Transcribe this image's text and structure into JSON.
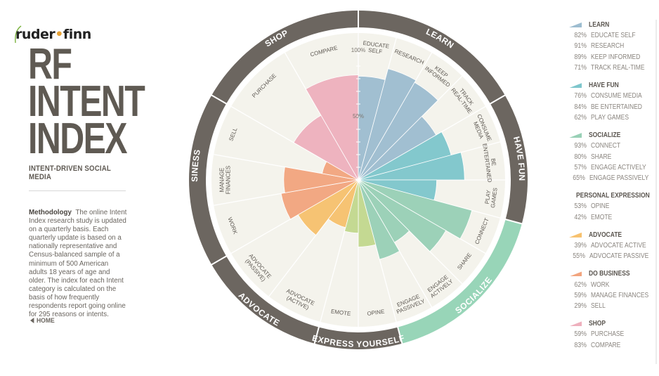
{
  "brand": {
    "name_left": "ruder",
    "name_dot": "•",
    "name_right": "finn"
  },
  "title_lines": [
    "RF",
    "INTENT",
    "INDEX"
  ],
  "subtitle": "INTENT-DRIVEN SOCIAL MEDIA",
  "methodology": {
    "heading": "Methodology",
    "text": "The online Intent Index research study is updated on a quarterly basis. Each quarterly update is based on a nationally representative and Census-balanced sample of a minimum of 500 American adults 18 years of age and older. The index for each Intent category is calculated on the basis of how frequently respondents report going online for 295 reasons or intents."
  },
  "home_label": "HOME",
  "colors": {
    "learn": "#9dbdd0",
    "have_fun": "#7ec6cc",
    "socialize": "#98d0b6",
    "personal_expression": "#c2d88e",
    "advocate": "#f7c16d",
    "do_business": "#f2a47e",
    "shop": "#eeb0bd",
    "ring": "#6c6660",
    "ring_highlight": "#98d5b8",
    "disk": "#f4f3ec"
  },
  "chart_data": {
    "type": "polar-bar",
    "axis_labels": {
      "full": "100%",
      "half": "50%"
    },
    "rlim": [
      0,
      100
    ],
    "categories": [
      {
        "name": "LEARN",
        "key": "learn",
        "start_deg": 0,
        "end_deg": 60,
        "ring_label": "LEARN",
        "highlight": false,
        "items": [
          {
            "label": "EDUCATE SELF",
            "value": 82,
            "lines": [
              "EDUCATE",
              "SELF"
            ]
          },
          {
            "label": "RESEARCH",
            "value": 91,
            "lines": [
              "RESEARCH"
            ]
          },
          {
            "label": "KEEP INFORMED",
            "value": 89,
            "lines": [
              "KEEP",
              "INFORMED"
            ]
          },
          {
            "label": "TRACK REAL-TIME",
            "value": 71,
            "lines": [
              "TRACK",
              "REAL-TIME"
            ]
          }
        ]
      },
      {
        "name": "HAVE FUN",
        "key": "have_fun",
        "start_deg": 60,
        "end_deg": 105,
        "ring_label": "HAVE FUN",
        "highlight": false,
        "items": [
          {
            "label": "CONSUME MEDIA",
            "value": 76,
            "lines": [
              "CONSUME",
              "MEDIA"
            ]
          },
          {
            "label": "BE ENTERTAINED",
            "value": 84,
            "lines": [
              "BE",
              "ENTERTAINED"
            ]
          },
          {
            "label": "PLAY GAMES",
            "value": 62,
            "lines": [
              "PLAY",
              "GAMES"
            ]
          }
        ]
      },
      {
        "name": "SOCIALIZE",
        "key": "socialize",
        "start_deg": 105,
        "end_deg": 165,
        "ring_label": "SOCIALIZE",
        "highlight": true,
        "items": [
          {
            "label": "CONNECT",
            "value": 93,
            "lines": [
              "CONNECT"
            ]
          },
          {
            "label": "SHARE",
            "value": 80,
            "lines": [
              "SHARE"
            ]
          },
          {
            "label": "ENGAGE ACTIVELY",
            "value": 57,
            "lines": [
              "ENGAGE",
              "ACTIVELY"
            ]
          },
          {
            "label": "ENGAGE PASSIVELY",
            "value": 65,
            "lines": [
              "ENGAGE",
              "PASSIVELY"
            ]
          }
        ]
      },
      {
        "name": "PERSONAL EXPRESSION",
        "key": "personal_expression",
        "start_deg": 165,
        "end_deg": 195,
        "ring_label": "EXPRESS YOURSELF",
        "highlight": false,
        "items": [
          {
            "label": "OPINE",
            "value": 53,
            "lines": [
              "OPINE"
            ]
          },
          {
            "label": "EMOTE",
            "value": 42,
            "lines": [
              "EMOTE"
            ]
          }
        ]
      },
      {
        "name": "ADVOCATE",
        "key": "advocate",
        "start_deg": 195,
        "end_deg": 240,
        "ring_label": "ADVOCATE",
        "highlight": false,
        "items": [
          {
            "label": "ADVOCATE ACTIVE",
            "value": 39,
            "lines": [
              "ADVOCATE",
              "(ACTIVE)"
            ]
          },
          {
            "label": "ADVOCATE PASSIVE",
            "value": 55,
            "lines": [
              "ADVOCATE",
              "(PASSIVE)"
            ]
          }
        ]
      },
      {
        "name": "DO BUSINESS",
        "key": "do_business",
        "start_deg": 240,
        "end_deg": 300,
        "ring_label": "DO BUSINESS",
        "highlight": false,
        "items": [
          {
            "label": "WORK",
            "value": 62,
            "lines": [
              "WORK"
            ]
          },
          {
            "label": "MANAGE FINANCES",
            "value": 59,
            "lines": [
              "MANAGE",
              "FINANCES"
            ]
          },
          {
            "label": "SELL",
            "value": 29,
            "lines": [
              "SELL"
            ]
          }
        ]
      },
      {
        "name": "SHOP",
        "key": "shop",
        "start_deg": 300,
        "end_deg": 360,
        "ring_label": "SHOP",
        "highlight": false,
        "items": [
          {
            "label": "PURCHASE",
            "value": 59,
            "lines": [
              "PURCHASE"
            ]
          },
          {
            "label": "COMPARE",
            "value": 83,
            "lines": [
              "COMPARE"
            ]
          }
        ]
      }
    ]
  }
}
